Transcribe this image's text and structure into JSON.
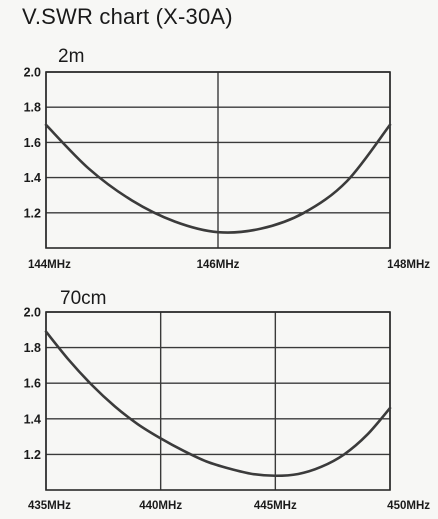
{
  "title": "V.SWR chart (X-30A)",
  "chart_data": [
    {
      "type": "line",
      "subtitle": "2m",
      "xlabel": "",
      "ylabel": "",
      "xlim": [
        144,
        148
      ],
      "ylim": [
        1.0,
        2.0
      ],
      "yticks": [
        1.2,
        1.4,
        1.6,
        1.8,
        2.0
      ],
      "ytick_labels": [
        "1.2",
        "1.4",
        "1.6",
        "1.8",
        "2.0"
      ],
      "xticks": [
        144,
        146,
        148
      ],
      "xtick_labels": [
        "144MHz",
        "146MHz",
        "148MHz"
      ],
      "grid": true,
      "series": [
        {
          "x": [
            144.0,
            144.5,
            145.0,
            145.5,
            146.0,
            146.5,
            147.0,
            147.5,
            148.0
          ],
          "y": [
            1.7,
            1.45,
            1.27,
            1.15,
            1.09,
            1.11,
            1.2,
            1.38,
            1.7
          ]
        }
      ]
    },
    {
      "type": "line",
      "subtitle": "70cm",
      "xlabel": "",
      "ylabel": "",
      "xlim": [
        435,
        450
      ],
      "ylim": [
        1.0,
        2.0
      ],
      "yticks": [
        1.2,
        1.4,
        1.6,
        1.8,
        2.0
      ],
      "ytick_labels": [
        "1.2",
        "1.4",
        "1.6",
        "1.8",
        "2.0"
      ],
      "xticks": [
        435,
        440,
        445,
        450
      ],
      "xtick_labels": [
        "435MHz",
        "440MHz",
        "445MHz",
        "450MHz"
      ],
      "grid": true,
      "series": [
        {
          "x": [
            435,
            436,
            437,
            438,
            439,
            440,
            441,
            442,
            443,
            444,
            445,
            446,
            447,
            448,
            449,
            450
          ],
          "y": [
            1.89,
            1.73,
            1.59,
            1.47,
            1.37,
            1.29,
            1.22,
            1.16,
            1.12,
            1.09,
            1.08,
            1.09,
            1.13,
            1.2,
            1.31,
            1.46
          ]
        }
      ]
    }
  ]
}
